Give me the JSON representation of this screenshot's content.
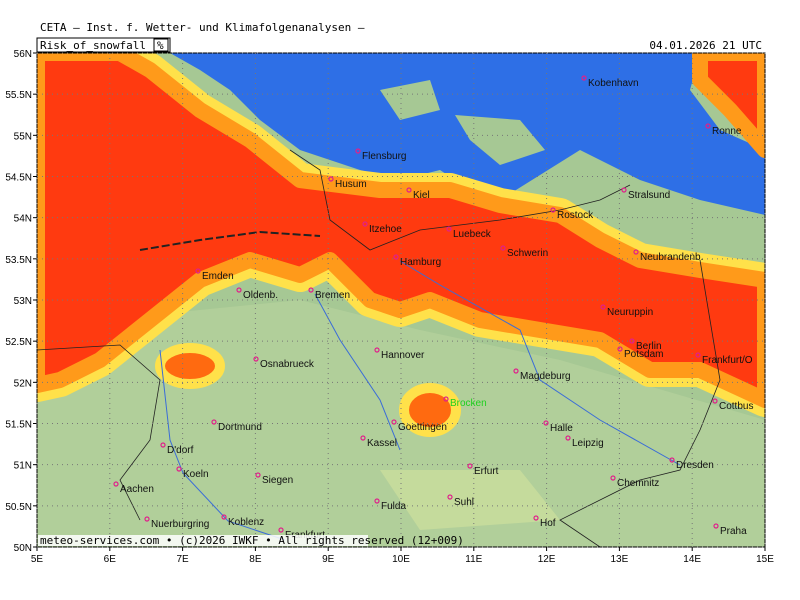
{
  "header": {
    "institute": "CETA — Inst. f. Wetter- und Klimafolgenanalysen —",
    "parameter": "Risk_of_snowfall",
    "unit": "%",
    "valid_time": "04.01.2026 21 UTC"
  },
  "map": {
    "lat_ticks": [
      {
        "value": 56,
        "label": "56N"
      },
      {
        "value": 55.5,
        "label": "55.5N"
      },
      {
        "value": 55,
        "label": "55N"
      },
      {
        "value": 54.5,
        "label": "54.5N"
      },
      {
        "value": 54,
        "label": "54N"
      },
      {
        "value": 53.5,
        "label": "53.5N"
      },
      {
        "value": 53,
        "label": "53N"
      },
      {
        "value": 52.5,
        "label": "52.5N"
      },
      {
        "value": 52,
        "label": "52N"
      },
      {
        "value": 51.5,
        "label": "51.5N"
      },
      {
        "value": 51,
        "label": "51N"
      },
      {
        "value": 50.5,
        "label": "50.5N"
      },
      {
        "value": 50,
        "label": "50N"
      }
    ],
    "lon_ticks": [
      {
        "value": 5,
        "label": "5E"
      },
      {
        "value": 6,
        "label": "6E"
      },
      {
        "value": 7,
        "label": "7E"
      },
      {
        "value": 8,
        "label": "8E"
      },
      {
        "value": 9,
        "label": "9E"
      },
      {
        "value": 10,
        "label": "10E"
      },
      {
        "value": 11,
        "label": "11E"
      },
      {
        "value": 12,
        "label": "12E"
      },
      {
        "value": 13,
        "label": "13E"
      },
      {
        "value": 14,
        "label": "14E"
      },
      {
        "value": 15,
        "label": "15E"
      }
    ],
    "cities": [
      "Kobenhavn",
      "Ronne",
      "Flensburg",
      "Stralsund",
      "Husum",
      "Kiel",
      "Rostock",
      "Itzehoe",
      "Luebeck",
      "Schwerin",
      "Neubrandenb.",
      "Emden",
      "Hamburg",
      "Oldenb.",
      "Bremen",
      "Neuruppin",
      "Berlin",
      "Potsdam",
      "Hannover",
      "Frankfurt/O",
      "Osnabrueck",
      "Magdeburg",
      "Cottbus",
      "Dortmund",
      "Goettingen",
      "Halle",
      "D'dorf",
      "Kassel",
      "Leipzig",
      "Dresden",
      "Koeln",
      "Erfurt",
      "Siegen",
      "Chemnitz",
      "Aachen",
      "Fulda",
      "Suhl",
      "Nuerburgring",
      "Koblenz",
      "Frankfurt",
      "Hof",
      "Praha"
    ],
    "peak": "Brocken",
    "credit": "meteo-services.com • (c)2026 IWKF • All rights reserved (12+009)"
  }
}
